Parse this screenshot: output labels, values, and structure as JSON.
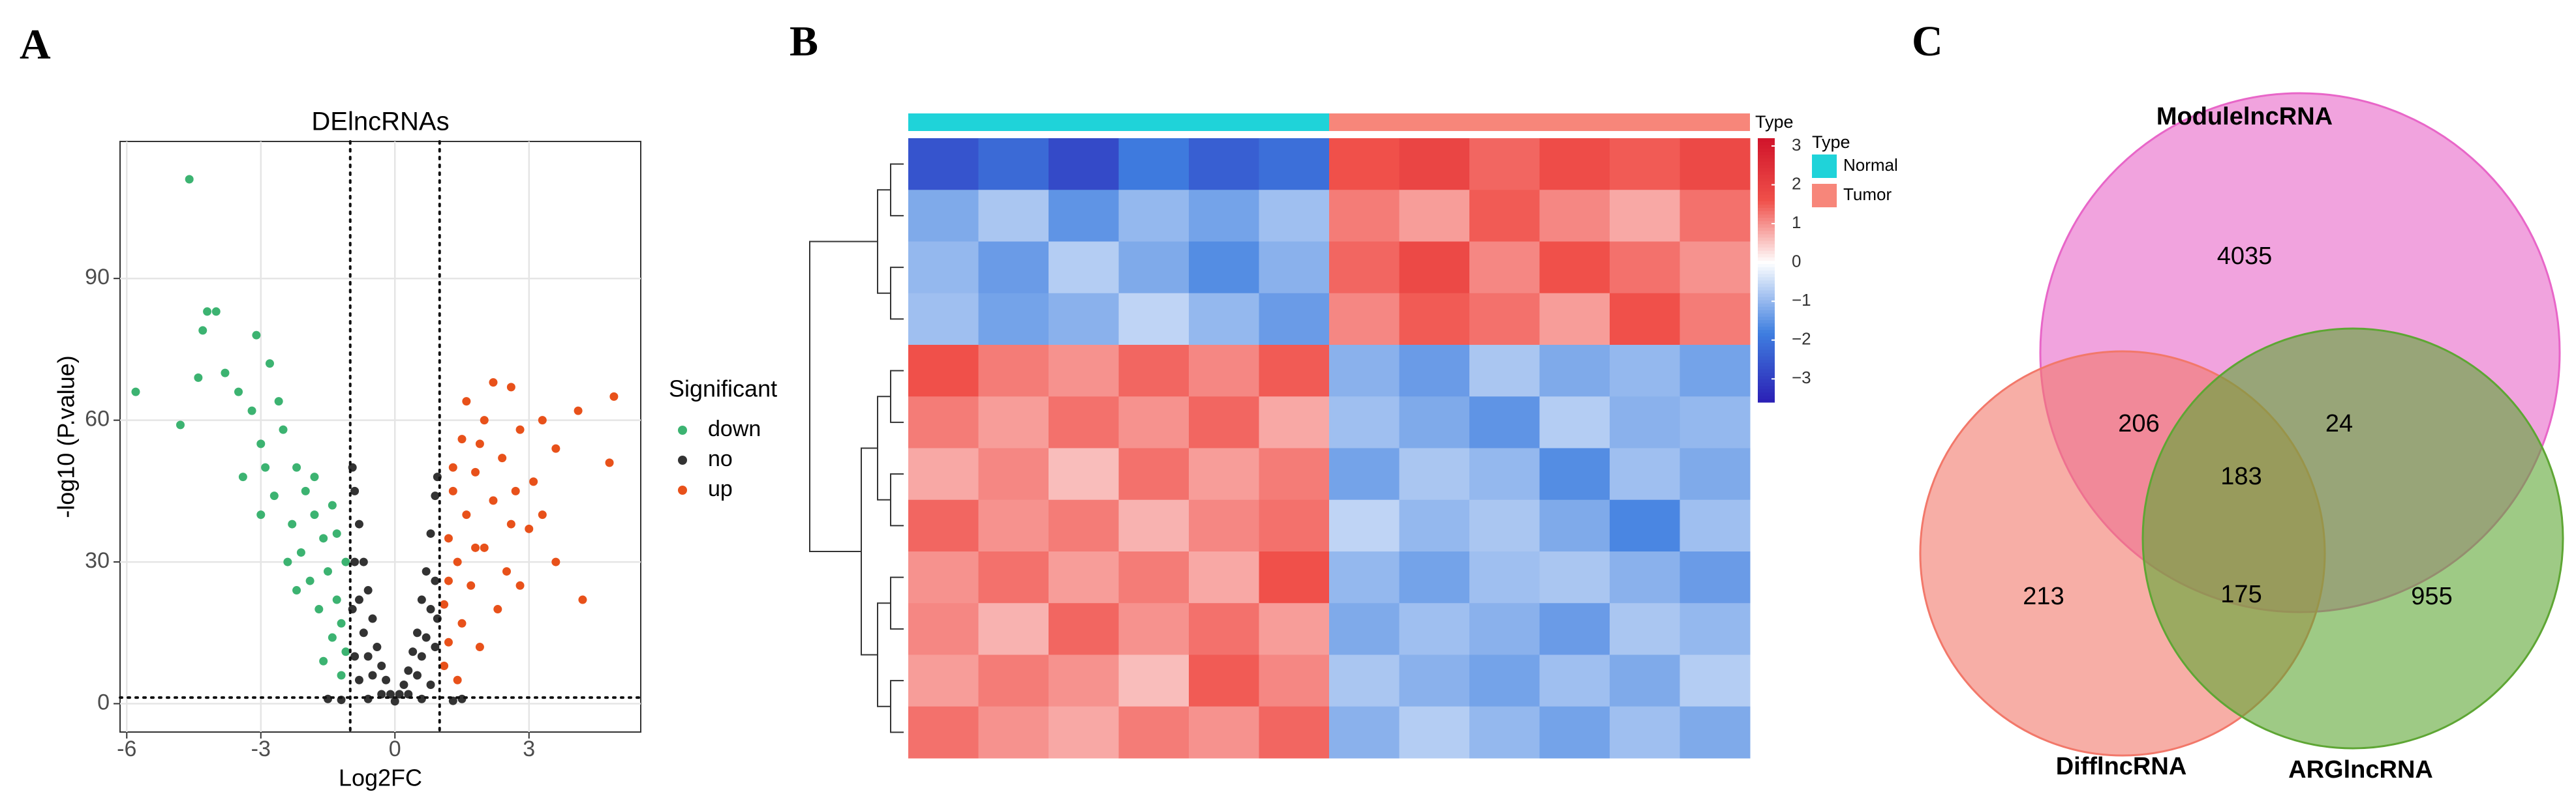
{
  "chart_data": [
    {
      "type": "scatter",
      "panel": "A",
      "title": "DElncRNAs",
      "xlabel": "Log2FC",
      "ylabel": "-log10 (P.value)",
      "xlim": [
        -6.15,
        5.5
      ],
      "ylim": [
        -6,
        119
      ],
      "xticks": [
        -6,
        -3,
        0,
        3
      ],
      "yticks": [
        0,
        30,
        60,
        90
      ],
      "grid": true,
      "vlines": [
        -1,
        1
      ],
      "hline": 1.3,
      "legend_title": "Significant",
      "series": [
        {
          "name": "down",
          "color": "#3cb371",
          "x": [
            -5.8,
            -4.6,
            -4.2,
            -4.0,
            -4.3,
            -3.1,
            -4.4,
            -3.8,
            -3.5,
            -4.8,
            -3.2,
            -2.8,
            -2.6,
            -3.0,
            -2.5,
            -2.2,
            -3.4,
            -2.0,
            -2.7,
            -1.8,
            -2.3,
            -1.6,
            -2.1,
            -1.5,
            -1.9,
            -1.3,
            -1.7,
            -1.2,
            -1.4,
            -1.1,
            -1.6,
            -1.2,
            -2.4,
            -3.0,
            -1.8,
            -2.9,
            -1.4,
            -2.2,
            -1.1,
            -1.3
          ],
          "values": [
            66,
            111,
            83,
            83,
            79,
            78,
            69,
            70,
            66,
            59,
            62,
            72,
            64,
            55,
            58,
            50,
            48,
            45,
            44,
            40,
            38,
            35,
            32,
            28,
            26,
            22,
            20,
            17,
            14,
            11,
            9,
            6,
            30,
            40,
            48,
            50,
            42,
            24,
            30,
            36
          ]
        },
        {
          "name": "no",
          "color": "#333333",
          "x": [
            -0.95,
            -0.9,
            -0.8,
            -0.7,
            -0.6,
            -0.5,
            -0.4,
            -0.3,
            -0.2,
            -0.1,
            0,
            0.1,
            0.2,
            0.3,
            0.4,
            0.5,
            0.6,
            0.7,
            0.8,
            0.9,
            0.95,
            -0.9,
            -0.8,
            -0.7,
            -0.6,
            -0.5,
            0.5,
            0.6,
            0.7,
            0.8,
            0.9,
            -0.3,
            0.3,
            -0.6,
            0.6,
            -0.9,
            0.9,
            -0.95,
            0.95,
            -1.5,
            1.5,
            -1.2,
            1.3,
            -0.8,
            0.8
          ],
          "values": [
            50,
            45,
            38,
            30,
            24,
            18,
            12,
            8,
            5,
            2,
            0.5,
            2,
            4,
            7,
            11,
            15,
            22,
            28,
            36,
            44,
            48,
            30,
            22,
            15,
            10,
            6,
            6,
            10,
            14,
            20,
            26,
            2,
            2,
            1,
            1,
            10,
            12,
            20,
            18,
            1,
            1,
            0.8,
            0.6,
            5,
            4
          ]
        },
        {
          "name": "up",
          "color": "#e8511a",
          "x": [
            4.9,
            4.8,
            4.1,
            3.3,
            3.6,
            2.6,
            2.2,
            1.6,
            2.0,
            2.8,
            1.5,
            2.4,
            1.8,
            3.1,
            1.3,
            2.2,
            1.6,
            2.6,
            1.2,
            2.0,
            3.6,
            1.4,
            4.2,
            2.8,
            1.7,
            1.1,
            2.3,
            1.5,
            1.2,
            1.9,
            1.1,
            1.4,
            3.0,
            1.9,
            2.7,
            1.3,
            2.5,
            1.8,
            3.3,
            1.2
          ],
          "values": [
            65,
            51,
            62,
            60,
            54,
            67,
            68,
            64,
            60,
            58,
            56,
            52,
            49,
            47,
            45,
            43,
            40,
            38,
            35,
            33,
            30,
            30,
            22,
            25,
            25,
            21,
            20,
            17,
            13,
            12,
            8,
            5,
            37,
            55,
            45,
            50,
            28,
            33,
            40,
            26
          ]
        }
      ]
    },
    {
      "type": "heatmap",
      "panel": "B",
      "annotation_title": "Type",
      "legend_title": "Type",
      "clim": [
        -3.6,
        3.2
      ],
      "palette": {
        "negative": [
          "#ffffff",
          "#3f7fe0",
          "#2b1fb5"
        ],
        "positive": [
          "#ffffff",
          "#f0504a",
          "#d0142a"
        ]
      },
      "colorbar_ticks": [
        3,
        2,
        1,
        0,
        {
          "value": -1,
          "label": "−1"
        },
        {
          "value": -2,
          "label": "−2"
        },
        {
          "value": -3,
          "label": "−3"
        }
      ],
      "groups": [
        {
          "name": "Normal",
          "color": "#1fd3d9",
          "values": [
            [
              -2.6,
              -2.2,
              -2.8,
              -1.9,
              -2.4,
              -2.1
            ],
            [
              -1.2,
              -0.8,
              -1.5,
              -1.0,
              -1.3,
              -0.9
            ],
            [
              -1.0,
              -1.4,
              -0.7,
              -1.2,
              -1.6,
              -1.1
            ],
            [
              -0.9,
              -1.3,
              -1.1,
              -0.6,
              -1.0,
              -1.4
            ],
            [
              1.6,
              1.2,
              1.0,
              1.4,
              1.1,
              1.5
            ],
            [
              1.2,
              0.9,
              1.3,
              1.0,
              1.4,
              0.8
            ],
            [
              0.8,
              1.1,
              0.6,
              1.3,
              0.9,
              1.2
            ],
            [
              1.4,
              1.0,
              1.2,
              0.7,
              1.1,
              1.3
            ],
            [
              1.0,
              1.3,
              0.9,
              1.2,
              0.8,
              1.6
            ],
            [
              1.1,
              0.7,
              1.4,
              1.0,
              1.3,
              0.9
            ],
            [
              0.9,
              1.2,
              1.0,
              0.6,
              1.5,
              1.1
            ],
            [
              1.3,
              1.0,
              0.8,
              1.2,
              1.0,
              1.4
            ]
          ]
        },
        {
          "name": "Tumor",
          "color": "#f7867a",
          "values": [
            [
              1.6,
              1.9,
              1.4,
              1.7,
              1.5,
              1.8
            ],
            [
              1.2,
              0.9,
              1.5,
              1.1,
              0.8,
              1.3
            ],
            [
              1.4,
              1.8,
              1.1,
              1.6,
              1.3,
              1.0
            ],
            [
              1.1,
              1.5,
              1.3,
              0.9,
              1.6,
              1.2
            ],
            [
              -1.1,
              -1.4,
              -0.8,
              -1.2,
              -1.0,
              -1.3
            ],
            [
              -0.9,
              -1.2,
              -1.5,
              -0.7,
              -1.1,
              -1.0
            ],
            [
              -1.3,
              -0.8,
              -1.0,
              -1.6,
              -0.9,
              -1.2
            ],
            [
              -0.6,
              -1.0,
              -0.8,
              -1.2,
              -1.7,
              -0.9
            ],
            [
              -1.0,
              -1.3,
              -0.9,
              -0.8,
              -1.1,
              -1.4
            ],
            [
              -1.2,
              -0.9,
              -1.1,
              -1.4,
              -0.8,
              -1.0
            ],
            [
              -0.8,
              -1.1,
              -1.3,
              -0.9,
              -1.2,
              -0.7
            ],
            [
              -1.1,
              -0.7,
              -1.0,
              -1.3,
              -0.9,
              -1.2
            ]
          ]
        }
      ]
    },
    {
      "type": "venn",
      "panel": "C",
      "sets": [
        {
          "name": "ModulelncRNA",
          "color": "#e866c8"
        },
        {
          "name": "DifflncRNA",
          "color": "#f2786a"
        },
        {
          "name": "ARGlncRNA",
          "color": "#5ea634"
        }
      ],
      "values": [
        4035,
        206,
        24,
        183,
        213,
        175,
        955
      ]
    }
  ]
}
